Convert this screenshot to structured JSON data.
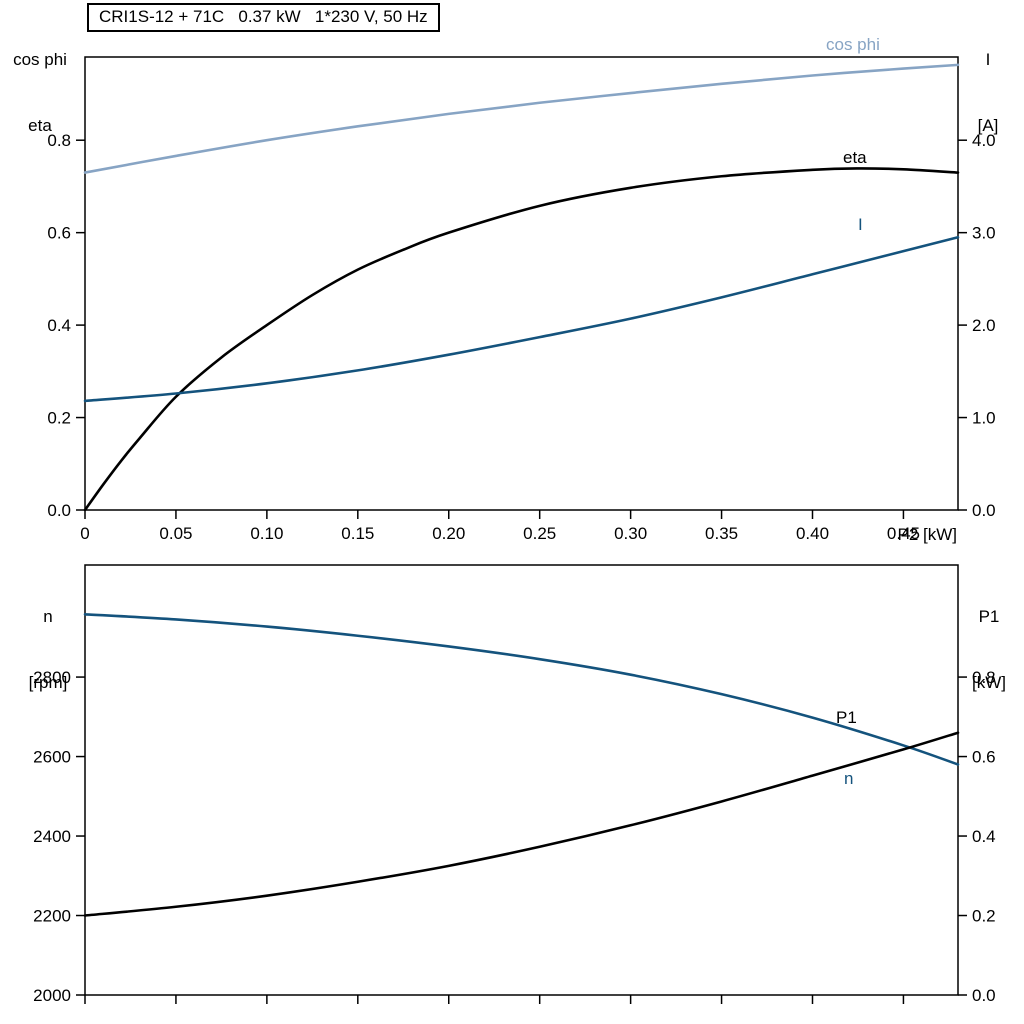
{
  "header": {
    "title": "CRI1S-12 + 71C   0.37 kW   1*230 V, 50 Hz"
  },
  "colors": {
    "cos_phi_blue": "#87a4c4",
    "dark_blue": "#14537d",
    "black": "#000000",
    "axis": "#000000",
    "background": "#ffffff"
  },
  "chart_data": [
    {
      "type": "line",
      "title": "CRI1S-12 + 71C   0.37 kW   1*230 V, 50 Hz",
      "xlabel": "P2 [kW]",
      "axis_labels": {
        "left": [
          "cos phi",
          "eta"
        ],
        "right": [
          "I",
          "[A]"
        ]
      },
      "xlim": [
        0,
        0.48
      ],
      "ylim_left": [
        0,
        0.98
      ],
      "ylim_right": [
        0,
        4.9
      ],
      "grid": false,
      "legend_position": "inline-curve-labels",
      "x_ticks": {
        "values": [
          0,
          0.05,
          0.1,
          0.15,
          0.2,
          0.25,
          0.3,
          0.35,
          0.4,
          0.45
        ],
        "labels": [
          "0",
          "0.05",
          "0.10",
          "0.15",
          "0.20",
          "0.25",
          "0.30",
          "0.35",
          "0.40",
          "0.45"
        ]
      },
      "y_ticks_left": {
        "values": [
          0.0,
          0.2,
          0.4,
          0.6,
          0.8
        ],
        "labels": [
          "0.0",
          "0.2",
          "0.4",
          "0.6",
          "0.8"
        ]
      },
      "y_ticks_right": {
        "values": [
          0.0,
          1.0,
          2.0,
          3.0,
          4.0
        ],
        "labels": [
          "0.0",
          "1.0",
          "2.0",
          "3.0",
          "4.0"
        ]
      },
      "series": [
        {
          "name": "cos phi",
          "axis": "left",
          "color": "#87a4c4",
          "x": [
            0,
            0.05,
            0.1,
            0.15,
            0.2,
            0.25,
            0.3,
            0.35,
            0.4,
            0.45,
            0.48
          ],
          "y": [
            0.73,
            0.766,
            0.8,
            0.83,
            0.857,
            0.881,
            0.902,
            0.922,
            0.94,
            0.955,
            0.963
          ]
        },
        {
          "name": "eta",
          "axis": "left",
          "color": "#000000",
          "x": [
            0,
            0.01,
            0.02,
            0.03,
            0.05,
            0.075,
            0.1,
            0.125,
            0.15,
            0.175,
            0.2,
            0.25,
            0.3,
            0.35,
            0.4,
            0.425,
            0.45,
            0.48
          ],
          "y": [
            0,
            0.055,
            0.107,
            0.155,
            0.245,
            0.33,
            0.4,
            0.465,
            0.52,
            0.563,
            0.6,
            0.658,
            0.697,
            0.722,
            0.736,
            0.739,
            0.737,
            0.73
          ]
        },
        {
          "name": "I",
          "axis": "right",
          "color": "#14537d",
          "x": [
            0,
            0.05,
            0.1,
            0.15,
            0.2,
            0.25,
            0.3,
            0.35,
            0.4,
            0.45,
            0.48
          ],
          "y": [
            1.18,
            1.26,
            1.37,
            1.51,
            1.68,
            1.87,
            2.07,
            2.3,
            2.55,
            2.8,
            2.95
          ]
        }
      ]
    },
    {
      "type": "line",
      "title": "",
      "xlabel": "",
      "axis_labels": {
        "left": [
          "n",
          "[rpm]"
        ],
        "right": [
          "P1",
          "[kW]"
        ]
      },
      "xlim": [
        0,
        0.48
      ],
      "ylim_left": [
        2000,
        3082
      ],
      "ylim_right": [
        0,
        1.082
      ],
      "grid": false,
      "legend_position": "inline-curve-labels",
      "x_ticks": {
        "values": [
          0,
          0.05,
          0.1,
          0.15,
          0.2,
          0.25,
          0.3,
          0.35,
          0.4,
          0.45
        ],
        "labels": [
          "",
          "",
          "",
          "",
          "",
          "",
          "",
          "",
          "",
          ""
        ]
      },
      "y_ticks_left": {
        "values": [
          2000,
          2200,
          2400,
          2600,
          2800
        ],
        "labels": [
          "2000",
          "2200",
          "2400",
          "2600",
          "2800"
        ]
      },
      "y_ticks_right": {
        "values": [
          0.0,
          0.2,
          0.4,
          0.6,
          0.8
        ],
        "labels": [
          "0.0",
          "0.2",
          "0.4",
          "0.6",
          "0.8"
        ]
      },
      "series": [
        {
          "name": "n",
          "axis": "left",
          "color": "#14537d",
          "x": [
            0,
            0.05,
            0.1,
            0.15,
            0.2,
            0.25,
            0.3,
            0.35,
            0.4,
            0.45,
            0.48
          ],
          "y": [
            2958,
            2945,
            2927,
            2904,
            2877,
            2845,
            2806,
            2757,
            2698,
            2628,
            2580
          ]
        },
        {
          "name": "P1",
          "axis": "right",
          "color": "#000000",
          "x": [
            0,
            0.05,
            0.1,
            0.15,
            0.2,
            0.25,
            0.3,
            0.35,
            0.4,
            0.45,
            0.48
          ],
          "y": [
            0.2,
            0.222,
            0.25,
            0.285,
            0.325,
            0.373,
            0.427,
            0.487,
            0.552,
            0.618,
            0.66
          ]
        }
      ]
    }
  ],
  "curve_labels": {
    "cos_phi": "cos phi",
    "eta": "eta",
    "I": "I",
    "P1": "P1",
    "n": "n"
  }
}
